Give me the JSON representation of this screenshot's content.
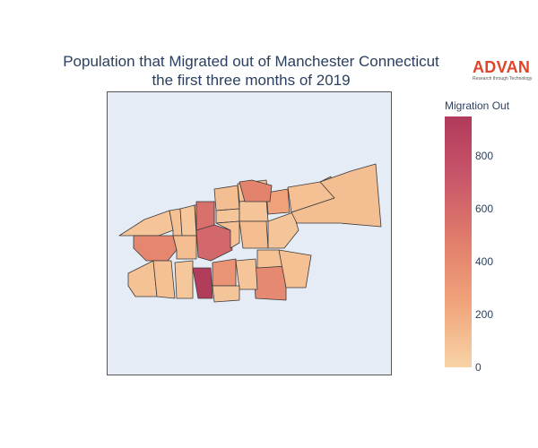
{
  "title_line1": "Population that Migrated out of Manchester Connecticut",
  "title_line2": "the first three months of 2019",
  "logo": {
    "name": "ADVAN",
    "tagline": "Research through Technology"
  },
  "colorbar": {
    "title": "Migration Out",
    "min": 0,
    "max": 950,
    "ticks": [
      "0",
      "200",
      "400",
      "600",
      "800"
    ],
    "colors": [
      "#f7d3a6",
      "#f1a57c",
      "#e17e6b",
      "#c9576a",
      "#b03a5b"
    ]
  },
  "chart_data": {
    "type": "choropleth",
    "metric": "Migration Out",
    "regions": [
      {
        "id": "r1",
        "value": 80
      },
      {
        "id": "r2",
        "value": 90
      },
      {
        "id": "r3",
        "value": 100
      },
      {
        "id": "r4",
        "value": 420
      },
      {
        "id": "r5",
        "value": 60
      },
      {
        "id": "r6",
        "value": 120
      },
      {
        "id": "r7",
        "value": 80
      },
      {
        "id": "r8",
        "value": 110
      },
      {
        "id": "r9",
        "value": 560
      },
      {
        "id": "r10",
        "value": 90
      },
      {
        "id": "r11",
        "value": 70
      },
      {
        "id": "r12",
        "value": 80
      },
      {
        "id": "r13",
        "value": 260
      },
      {
        "id": "r14",
        "value": 100
      },
      {
        "id": "r15",
        "value": 610
      },
      {
        "id": "r16",
        "value": 90
      },
      {
        "id": "r17",
        "value": 120
      },
      {
        "id": "r18",
        "value": 70
      },
      {
        "id": "r19",
        "value": 450
      },
      {
        "id": "r20",
        "value": 110
      },
      {
        "id": "r21",
        "value": 90
      },
      {
        "id": "r22",
        "value": 100
      },
      {
        "id": "r23",
        "value": 930
      },
      {
        "id": "r24",
        "value": 60
      },
      {
        "id": "r25",
        "value": 340
      },
      {
        "id": "r26",
        "value": 410
      },
      {
        "id": "r27",
        "value": 80
      },
      {
        "id": "r28",
        "value": 90
      },
      {
        "id": "r29",
        "value": 100
      },
      {
        "id": "r30",
        "value": 70
      }
    ]
  }
}
